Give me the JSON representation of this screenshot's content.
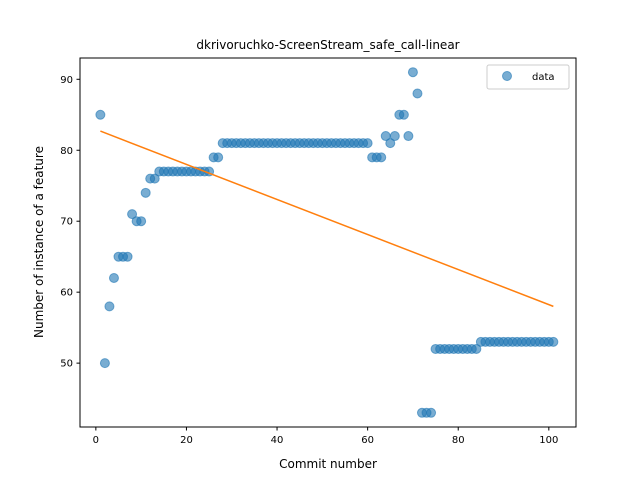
{
  "chart_data": {
    "type": "scatter",
    "title": "dkrivoruchko-ScreenStream_safe_call-linear",
    "xlabel": "Commit number",
    "ylabel": "Number of instance of a feature",
    "xlim": [
      -3.5,
      106
    ],
    "ylim": [
      41,
      93
    ],
    "xticks": [
      0,
      20,
      40,
      60,
      80,
      100
    ],
    "yticks": [
      50,
      60,
      70,
      80,
      90
    ],
    "grid": false,
    "legend_position": "top-right",
    "colors": {
      "scatter": "#1f77b4",
      "fit_line": "#ff7f0e"
    },
    "series": [
      {
        "name": "data",
        "kind": "scatter",
        "x": [
          1,
          2,
          3,
          4,
          5,
          6,
          7,
          8,
          9,
          10,
          11,
          12,
          13,
          14,
          15,
          16,
          17,
          18,
          19,
          20,
          21,
          22,
          23,
          24,
          25,
          26,
          27,
          28,
          29,
          30,
          31,
          32,
          33,
          34,
          35,
          36,
          37,
          38,
          39,
          40,
          41,
          42,
          43,
          44,
          45,
          46,
          47,
          48,
          49,
          50,
          51,
          52,
          53,
          54,
          55,
          56,
          57,
          58,
          59,
          60,
          61,
          62,
          63,
          64,
          65,
          66,
          67,
          68,
          69,
          70,
          71,
          72,
          73,
          74,
          75,
          76,
          77,
          78,
          79,
          80,
          81,
          82,
          83,
          84,
          85,
          86,
          87,
          88,
          89,
          90,
          91,
          92,
          93,
          94,
          95,
          96,
          97,
          98,
          99,
          100,
          101
        ],
        "y": [
          85,
          50,
          58,
          62,
          65,
          65,
          65,
          71,
          70,
          70,
          74,
          76,
          76,
          77,
          77,
          77,
          77,
          77,
          77,
          77,
          77,
          77,
          77,
          77,
          77,
          79,
          79,
          81,
          81,
          81,
          81,
          81,
          81,
          81,
          81,
          81,
          81,
          81,
          81,
          81,
          81,
          81,
          81,
          81,
          81,
          81,
          81,
          81,
          81,
          81,
          81,
          81,
          81,
          81,
          81,
          81,
          81,
          81,
          81,
          81,
          79,
          79,
          79,
          82,
          81,
          82,
          85,
          85,
          82,
          91,
          88,
          43,
          43,
          43,
          52,
          52,
          52,
          52,
          52,
          52,
          52,
          52,
          52,
          52,
          53,
          53,
          53,
          53,
          53,
          53,
          53,
          53,
          53,
          53,
          53,
          53,
          53,
          53,
          53,
          53,
          53
        ]
      },
      {
        "name": "",
        "kind": "line",
        "x": [
          1,
          101
        ],
        "y": [
          82.7,
          58.0
        ]
      }
    ]
  }
}
